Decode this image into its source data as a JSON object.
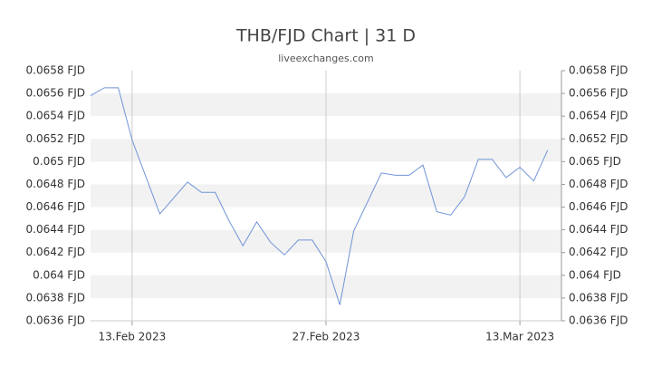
{
  "chart_data": {
    "type": "line",
    "title": "THB/FJD Chart | 31 D",
    "subtitle": "liveexchanges.com",
    "x": [
      "2023-02-10",
      "2023-02-11",
      "2023-02-12",
      "2023-02-13",
      "2023-02-15",
      "2023-02-17",
      "2023-02-18",
      "2023-02-19",
      "2023-02-20",
      "2023-02-21",
      "2023-02-22",
      "2023-02-23",
      "2023-02-24",
      "2023-02-25",
      "2023-02-26",
      "2023-02-27",
      "2023-02-28",
      "2023-03-01",
      "2023-03-03",
      "2023-03-04",
      "2023-03-05",
      "2023-03-06",
      "2023-03-07",
      "2023-03-08",
      "2023-03-09",
      "2023-03-10",
      "2023-03-11",
      "2023-03-12",
      "2023-03-13",
      "2023-03-14",
      "2023-03-15"
    ],
    "series": [
      {
        "name": "THB/FJD",
        "color": "#6f94d6",
        "values": [
          0.06558,
          0.06565,
          0.06565,
          0.06519,
          0.06454,
          0.06482,
          0.06473,
          0.06473,
          0.06448,
          0.06426,
          0.06447,
          0.06429,
          0.06418,
          0.06431,
          0.06431,
          0.06412,
          0.06374,
          0.06439,
          0.0649,
          0.06488,
          0.06488,
          0.06497,
          0.06456,
          0.06453,
          0.06469,
          0.06502,
          0.06502,
          0.06486,
          0.06495,
          0.06483,
          0.0651
        ]
      }
    ],
    "xlim": [
      "2023-02-10",
      "2023-03-16"
    ],
    "xticks": [
      {
        "value": "2023-02-13",
        "label": "13.Feb 2023"
      },
      {
        "value": "2023-02-27",
        "label": "27.Feb 2023"
      },
      {
        "value": "2023-03-13",
        "label": "13.Mar 2023"
      }
    ],
    "ylim": [
      0.0636,
      0.0658
    ],
    "yticks": [
      {
        "value": 0.0636,
        "label": "0.0636 FJD"
      },
      {
        "value": 0.0638,
        "label": "0.0638 FJD"
      },
      {
        "value": 0.064,
        "label": "0.064 FJD"
      },
      {
        "value": 0.0642,
        "label": "0.0642 FJD"
      },
      {
        "value": 0.0644,
        "label": "0.0644 FJD"
      },
      {
        "value": 0.0646,
        "label": "0.0646 FJD"
      },
      {
        "value": 0.0648,
        "label": "0.0648 FJD"
      },
      {
        "value": 0.065,
        "label": "0.065 FJD"
      },
      {
        "value": 0.0652,
        "label": "0.0652 FJD"
      },
      {
        "value": 0.0654,
        "label": "0.0654 FJD"
      },
      {
        "value": 0.0656,
        "label": "0.0656 FJD"
      },
      {
        "value": 0.0658,
        "label": "0.0658 FJD"
      }
    ],
    "grid": true
  }
}
